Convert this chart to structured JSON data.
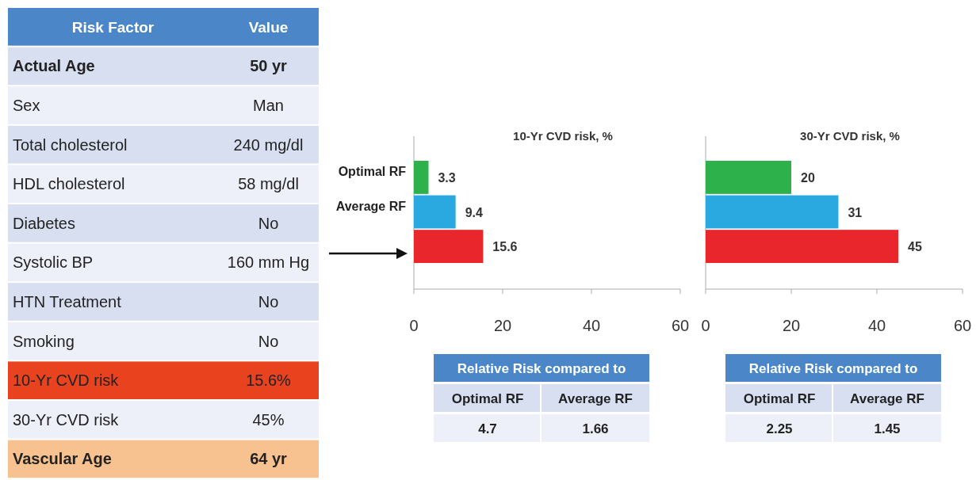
{
  "chart_data": [
    {
      "type": "other",
      "annotations": [
        "Risk Factor",
        "Value"
      ],
      "categories": [
        "Actual Age",
        "Sex",
        "Total cholesterol",
        "HDL cholesterol",
        "Diabetes",
        "Systolic BP",
        "HTN Treatment",
        "Smoking",
        "10-Yr CVD risk",
        "30-Yr CVD risk",
        "Vascular Age"
      ],
      "value_labels": [
        "50 yr",
        "Man",
        "240 mg/dl",
        "58 mg/dl",
        "No",
        "160 mm Hg",
        "No",
        "No",
        "15.6%",
        "45%",
        "64 yr"
      ],
      "colors": [
        "#d7dff0",
        "#edf0f8",
        "#d7dff0",
        "#edf0f8",
        "#d7dff0",
        "#edf0f8",
        "#d7dff0",
        "#edf0f8",
        "#e9421e",
        "#edf0f8",
        "#f8c290"
      ]
    },
    {
      "type": "bar",
      "orientation": "horizontal",
      "title": "10-Yr CVD risk, %",
      "categories": [
        "Optimal RF",
        "Average RF",
        null
      ],
      "values": [
        3.3,
        9.4,
        15.6
      ],
      "colors": [
        "#2db14b",
        "#2aa9e1",
        "#e8262b"
      ],
      "xlim": [
        0,
        60
      ],
      "xticks": [
        0,
        20,
        40,
        60
      ],
      "data_labels": true,
      "annotations": [
        "Relative Risk compared to",
        "Optimal RF",
        "Average RF",
        "4.7",
        "1.66"
      ]
    },
    {
      "type": "bar",
      "orientation": "horizontal",
      "title": "30-Yr CVD risk, %",
      "categories": [
        null,
        null,
        null
      ],
      "values": [
        20,
        31,
        45
      ],
      "colors": [
        "#2db14b",
        "#2aa9e1",
        "#e8262b"
      ],
      "xlim": [
        0,
        60
      ],
      "xticks": [
        0,
        20,
        40,
        60
      ],
      "data_labels": true,
      "annotations": [
        "Relative Risk compared to",
        "Optimal RF",
        "Average RF",
        "2.25",
        "1.45"
      ]
    }
  ]
}
